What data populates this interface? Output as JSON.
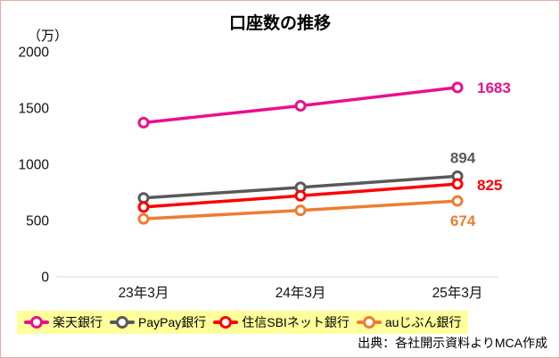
{
  "title": "口座数の推移",
  "unit_label": "（万）",
  "source": "出典：各社開示資料よりMCA作成",
  "legend_highlight_color": "#ffff9c",
  "frame_border_color": "#f0a8a8",
  "chart_data": {
    "type": "line",
    "title": "口座数の推移",
    "ylabel": "（万）",
    "xlabel": "",
    "categories": [
      "23年3月",
      "24年3月",
      "25年3月"
    ],
    "series": [
      {
        "name": "楽天銀行",
        "values": [
          1370,
          1520,
          1683
        ],
        "color": "#ea0f8c"
      },
      {
        "name": "PayPay銀行",
        "values": [
          700,
          795,
          894
        ],
        "color": "#595959"
      },
      {
        "name": "住信SBIネット銀行",
        "values": [
          620,
          720,
          825
        ],
        "color": "#ff0000"
      },
      {
        "name": "auじぶん銀行",
        "values": [
          515,
          590,
          674
        ],
        "color": "#ed7d31"
      }
    ],
    "end_value_labels": [
      "1683",
      "894",
      "825",
      "674"
    ],
    "ylim": [
      0,
      2000
    ],
    "yticks": [
      0,
      500,
      1000,
      1500,
      2000
    ],
    "grid": false,
    "legend_position": "bottom"
  }
}
